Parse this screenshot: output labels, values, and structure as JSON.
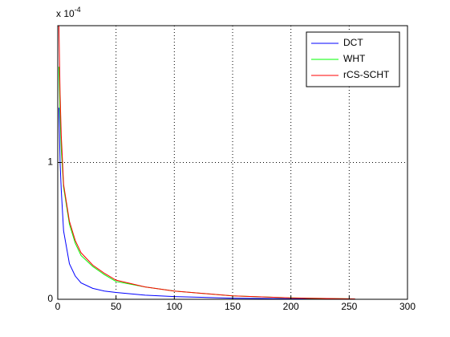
{
  "chart_data": {
    "type": "line",
    "y_multiplier": {
      "base": "x 10",
      "exponent": "-4"
    },
    "x": [
      1,
      2,
      3,
      5,
      10,
      15,
      20,
      30,
      40,
      50,
      75,
      100,
      150,
      200,
      255
    ],
    "series": [
      {
        "name": "DCT",
        "color": "#0000ff",
        "values": [
          1.4,
          1.0,
          0.8,
          0.5,
          0.26,
          0.17,
          0.12,
          0.08,
          0.06,
          0.05,
          0.03,
          0.02,
          0.008,
          0.004,
          0.002
        ]
      },
      {
        "name": "WHT",
        "color": "#00ff00",
        "values": [
          1.7,
          1.35,
          1.1,
          0.82,
          0.55,
          0.41,
          0.32,
          0.24,
          0.18,
          0.13,
          0.09,
          0.06,
          0.025,
          0.01,
          0.003
        ]
      },
      {
        "name": "rCS-SCHT",
        "color": "#ff0000",
        "values": [
          2.0,
          1.5,
          1.2,
          0.84,
          0.57,
          0.43,
          0.34,
          0.25,
          0.19,
          0.14,
          0.09,
          0.06,
          0.025,
          0.01,
          0.003
        ]
      }
    ],
    "xlim": [
      0,
      300
    ],
    "xticks": [
      0,
      50,
      100,
      150,
      200,
      250,
      300
    ],
    "ylim": [
      0,
      2
    ],
    "yticks": [
      0,
      1
    ],
    "grid": true,
    "legend": "northeast"
  }
}
